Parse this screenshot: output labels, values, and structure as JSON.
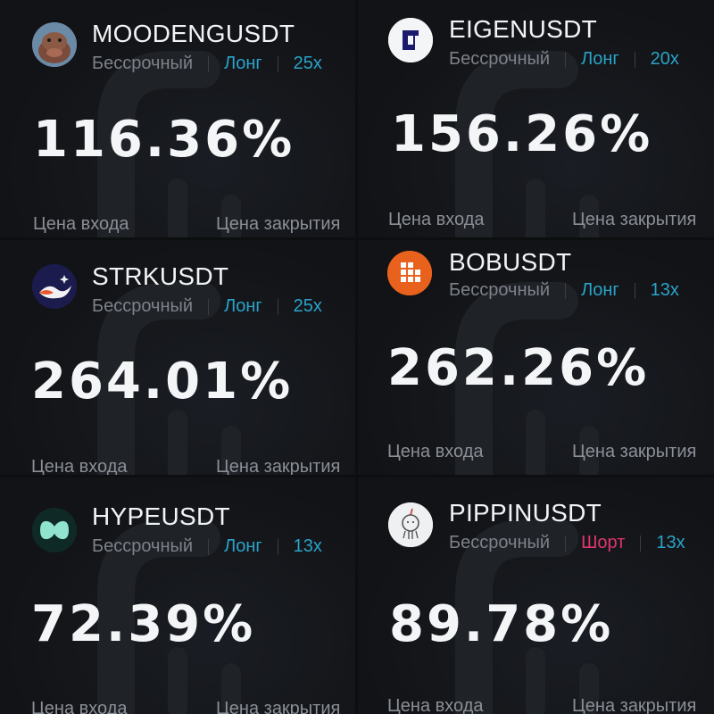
{
  "labels": {
    "entry_price": "Цена входа",
    "close_price": "Цена закрытия"
  },
  "cards": [
    {
      "pair": "MOODENGUSDT",
      "contract_type": "Бессрочный",
      "side": "Лонг",
      "side_type": "long",
      "leverage": "25x",
      "pnl_percent": "116.36%",
      "logo": "moodeng-hippo-icon"
    },
    {
      "pair": "EIGENUSDT",
      "contract_type": "Бессрочный",
      "side": "Лонг",
      "side_type": "long",
      "leverage": "20x",
      "pnl_percent": "156.26%",
      "logo": "eigen-icon"
    },
    {
      "pair": "STRKUSDT",
      "contract_type": "Бессрочный",
      "side": "Лонг",
      "side_type": "long",
      "leverage": "25x",
      "pnl_percent": "264.01%",
      "logo": "starknet-icon"
    },
    {
      "pair": "BOBUSDT",
      "contract_type": "Бессрочный",
      "side": "Лонг",
      "side_type": "long",
      "leverage": "13x",
      "pnl_percent": "262.26%",
      "logo": "bob-blocks-icon"
    },
    {
      "pair": "HYPEUSDT",
      "contract_type": "Бессрочный",
      "side": "Лонг",
      "side_type": "long",
      "leverage": "13x",
      "pnl_percent": "72.39%",
      "logo": "hyperliquid-icon"
    },
    {
      "pair": "PIPPINUSDT",
      "contract_type": "Бессрочный",
      "side": "Шорт",
      "side_type": "short",
      "leverage": "13x",
      "pnl_percent": "89.78%",
      "logo": "pippin-unicorn-icon"
    }
  ],
  "colors": {
    "long": "#2aa3c9",
    "short": "#e0356d",
    "bob_orange": "#e8621d",
    "hype_teal": "#8fe3cf"
  }
}
